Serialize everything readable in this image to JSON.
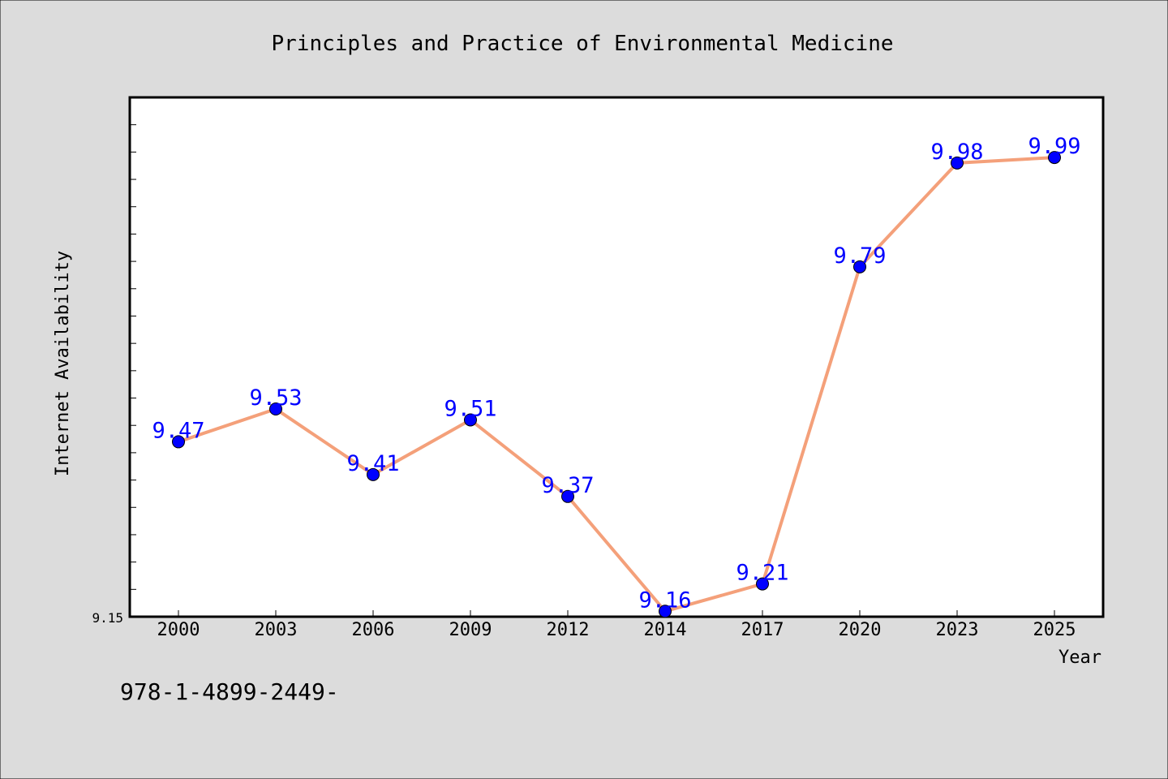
{
  "page": {
    "title": "Principles and Practice of Environmental Medicine",
    "footer_text": "978-1-4899-2449-"
  },
  "colors": {
    "background": "#dcdcdc",
    "plot_background": "#ffffff",
    "line": "#f4a07a",
    "marker": "#0000ff",
    "data_label": "#0000ff",
    "text": "#000000"
  },
  "chart_data": {
    "type": "line",
    "title": "Principles and Practice of Environmental Medicine",
    "xlabel": "Year",
    "ylabel": "Internet Availability",
    "categories": [
      "2000",
      "2003",
      "2006",
      "2009",
      "2012",
      "2014",
      "2017",
      "2020",
      "2023",
      "2025"
    ],
    "series": [
      {
        "values": [
          9.47,
          9.53,
          9.41,
          9.51,
          9.37,
          9.16,
          9.21,
          9.79,
          9.98,
          9.99
        ]
      }
    ],
    "data_labels": [
      "9.47",
      "9.53",
      "9.41",
      "9.51",
      "9.37",
      "9.16",
      "9.21",
      "9.79",
      "9.98",
      "9.99"
    ],
    "y_tick_labels": [
      "9.15"
    ],
    "ylim": [
      9.15,
      10.1
    ],
    "grid": false,
    "legend": "none"
  }
}
